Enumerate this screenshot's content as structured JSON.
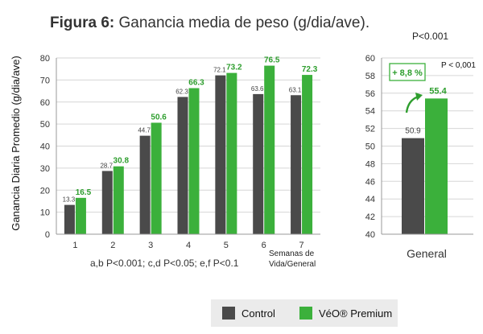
{
  "figure": {
    "label": "Figura 6:",
    "title": "Ganancia media de peso (g/dia/ave).",
    "top_pvalue": "P<0.001"
  },
  "colors": {
    "control": "#4a4a4a",
    "premium": "#3bb03b",
    "label_green": "#2e9e2e"
  },
  "legend": {
    "control": "Control",
    "premium": "VéO® Premium"
  },
  "chart_data": [
    {
      "type": "bar",
      "categories": [
        "1",
        "2",
        "3",
        "4",
        "5",
        "6",
        "7"
      ],
      "series": [
        {
          "name": "Control",
          "values": [
            13.3,
            28.7,
            44.7,
            62.3,
            72.1,
            63.6,
            63.1
          ],
          "labels": [
            "13.3",
            "28.7",
            "44.7",
            "62.3",
            "72.1",
            "63.6",
            "63.1"
          ]
        },
        {
          "name": "VéO® Premium",
          "values": [
            16.5,
            30.8,
            50.6,
            66.3,
            73.2,
            76.5,
            72.3
          ],
          "labels": [
            "16.5",
            "30.8",
            "50.6",
            "66.3",
            "73.2",
            "76.5",
            "72.3"
          ]
        }
      ],
      "ylabel": "Ganancia Diaria Promedio (g/dia/ave)",
      "xlabel": "Semanas de Vida/General",
      "yticks": [
        "0",
        "10",
        "20",
        "30",
        "40",
        "50",
        "60",
        "70",
        "80"
      ],
      "ylim": [
        0,
        80
      ],
      "footnote": "a,b P<0.001; c,d P<0.05; e,f P<0.1",
      "grid": true
    },
    {
      "type": "bar",
      "categories": [
        "General"
      ],
      "series": [
        {
          "name": "Control",
          "values": [
            50.9
          ],
          "labels": [
            "50.9"
          ]
        },
        {
          "name": "VéO® Premium",
          "values": [
            55.4
          ],
          "labels": [
            "55.4"
          ]
        }
      ],
      "yticks": [
        "40",
        "42",
        "44",
        "46",
        "48",
        "50",
        "52",
        "54",
        "56",
        "58",
        "60"
      ],
      "ylim": [
        40,
        60
      ],
      "annotation": "+ 8,8 %",
      "pvalue": "P < 0,001",
      "xlabel": "General",
      "grid": true
    }
  ]
}
